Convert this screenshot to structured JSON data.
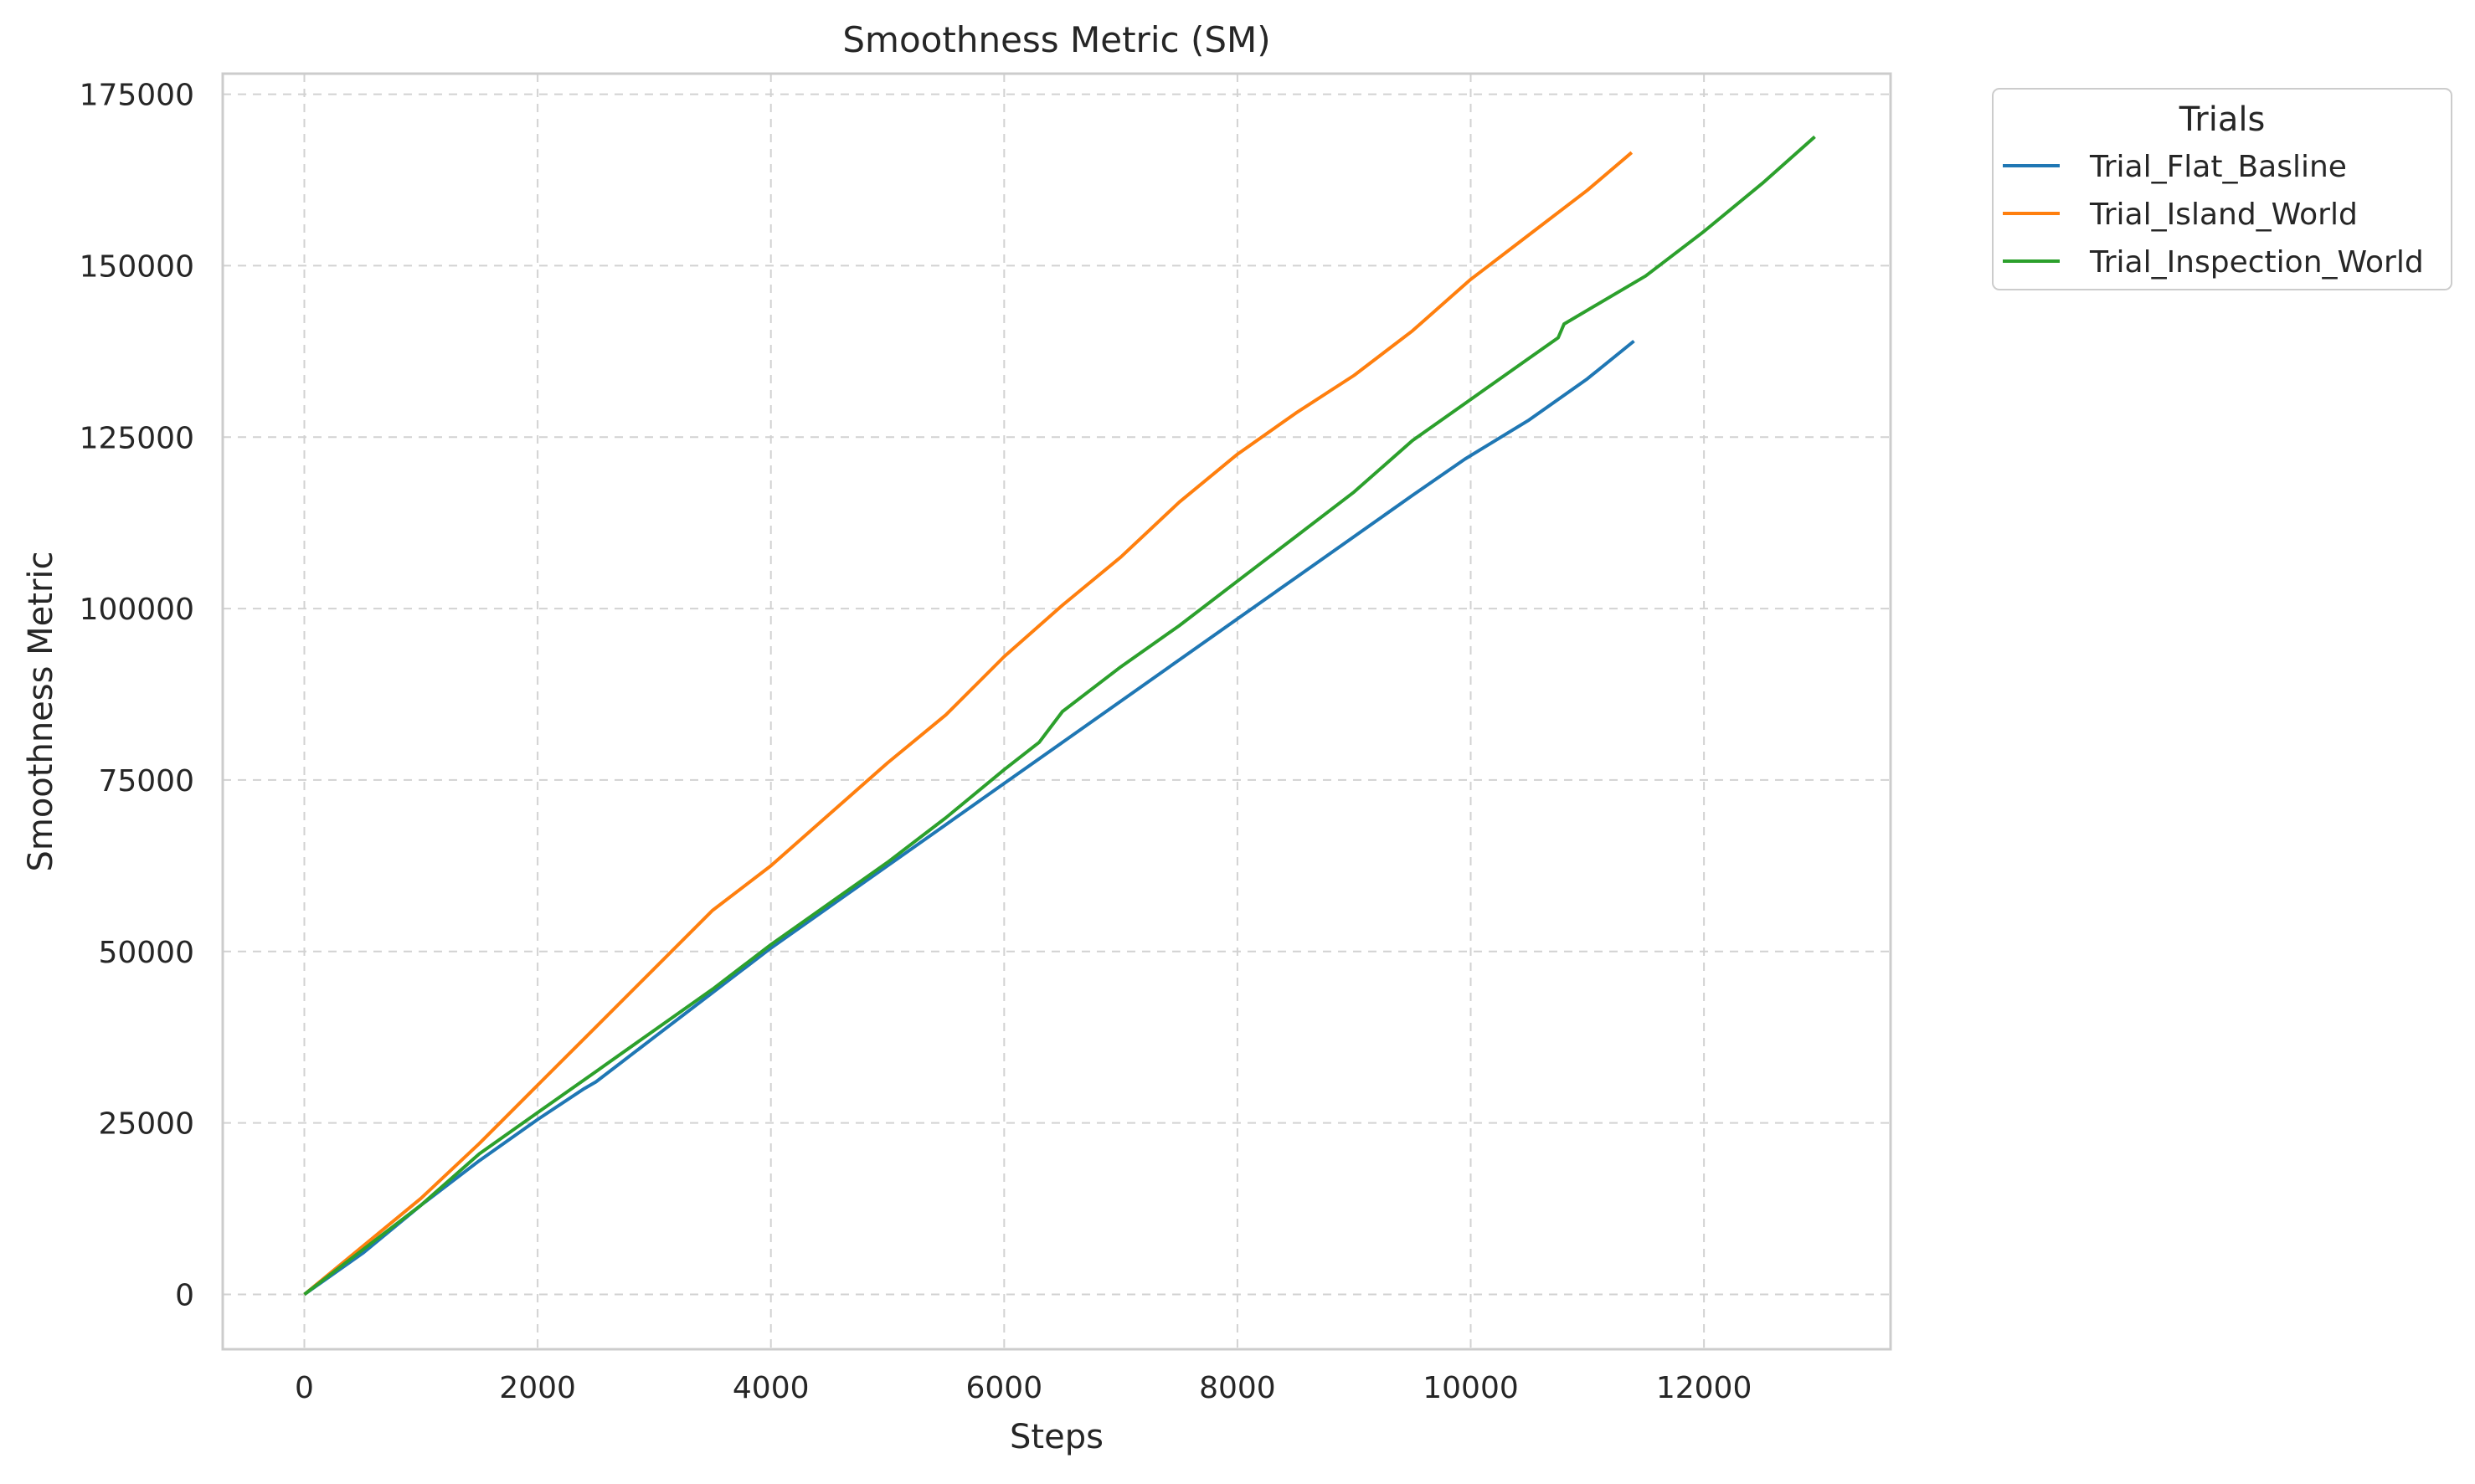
{
  "chart_data": {
    "type": "line",
    "title": "Smoothness Metric (SM)",
    "xlabel": "Steps",
    "ylabel": "Smoothness Metric",
    "xlim": [
      -700,
      13600
    ],
    "ylim": [
      -8000,
      178000
    ],
    "xticks": [
      0,
      2000,
      4000,
      6000,
      8000,
      10000,
      12000
    ],
    "yticks": [
      0,
      25000,
      50000,
      75000,
      100000,
      125000,
      150000,
      175000
    ],
    "grid": true,
    "legend": {
      "title": "Trials",
      "placement": "outside-top-right"
    },
    "series": [
      {
        "name": "Trial_Flat_Basline",
        "color": "#1f77b4",
        "points": [
          [
            0,
            0
          ],
          [
            500,
            6000
          ],
          [
            1000,
            13000
          ],
          [
            1500,
            19500
          ],
          [
            2000,
            25500
          ],
          [
            2400,
            30000
          ],
          [
            2500,
            31000
          ],
          [
            3000,
            37500
          ],
          [
            3500,
            44000
          ],
          [
            4000,
            50500
          ],
          [
            4500,
            56500
          ],
          [
            5000,
            62500
          ],
          [
            5500,
            68500
          ],
          [
            6000,
            74500
          ],
          [
            6500,
            80500
          ],
          [
            7000,
            86500
          ],
          [
            7500,
            92500
          ],
          [
            8000,
            98500
          ],
          [
            8500,
            104500
          ],
          [
            9000,
            110500
          ],
          [
            9500,
            116500
          ],
          [
            9950,
            121800
          ],
          [
            10500,
            127500
          ],
          [
            11000,
            133500
          ],
          [
            11400,
            139000
          ]
        ]
      },
      {
        "name": "Trial_Island_World",
        "color": "#ff7f0e",
        "points": [
          [
            0,
            0
          ],
          [
            500,
            7000
          ],
          [
            1000,
            14000
          ],
          [
            1500,
            22000
          ],
          [
            2000,
            30500
          ],
          [
            2500,
            39000
          ],
          [
            3000,
            47500
          ],
          [
            3500,
            56000
          ],
          [
            4000,
            62500
          ],
          [
            4500,
            70000
          ],
          [
            5000,
            77500
          ],
          [
            5500,
            84500
          ],
          [
            6000,
            93000
          ],
          [
            6500,
            100500
          ],
          [
            7000,
            107500
          ],
          [
            7500,
            115500
          ],
          [
            8000,
            122500
          ],
          [
            8500,
            128500
          ],
          [
            9000,
            134000
          ],
          [
            9500,
            140500
          ],
          [
            10000,
            148000
          ],
          [
            10500,
            154500
          ],
          [
            11000,
            161000
          ],
          [
            11380,
            166500
          ]
        ]
      },
      {
        "name": "Trial_Inspection_World",
        "color": "#2ca02c",
        "points": [
          [
            0,
            0
          ],
          [
            500,
            6500
          ],
          [
            1000,
            13000
          ],
          [
            1500,
            20500
          ],
          [
            2000,
            26500
          ],
          [
            2500,
            32500
          ],
          [
            3000,
            38500
          ],
          [
            3500,
            44500
          ],
          [
            4000,
            51000
          ],
          [
            4500,
            57000
          ],
          [
            5000,
            63000
          ],
          [
            5500,
            69500
          ],
          [
            6000,
            76500
          ],
          [
            6300,
            80500
          ],
          [
            6500,
            85000
          ],
          [
            7000,
            91500
          ],
          [
            7500,
            97500
          ],
          [
            8000,
            104000
          ],
          [
            8500,
            110500
          ],
          [
            9000,
            117000
          ],
          [
            9500,
            124500
          ],
          [
            10000,
            130500
          ],
          [
            10500,
            136500
          ],
          [
            10750,
            139500
          ],
          [
            10800,
            141500
          ],
          [
            11500,
            148500
          ],
          [
            12000,
            155000
          ],
          [
            12500,
            162000
          ],
          [
            12950,
            168800
          ]
        ]
      }
    ]
  }
}
